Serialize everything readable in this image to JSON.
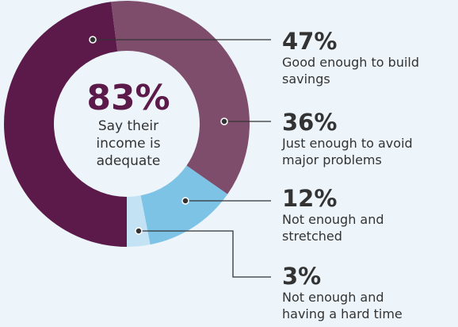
{
  "chart_data": {
    "type": "pie",
    "donut": true,
    "center_value": "83%",
    "center_text": [
      "Say their",
      "income is",
      "adequate"
    ],
    "slices": [
      {
        "value": 47,
        "label_value": "47%",
        "label": [
          "Good enough to build",
          "savings"
        ],
        "color": "#5c1a4a"
      },
      {
        "value": 36,
        "label_value": "36%",
        "label": [
          "Just enough to avoid",
          "major problems"
        ],
        "color": "#7e4d6c"
      },
      {
        "value": 12,
        "label_value": "12%",
        "label": [
          "Not enough and",
          "stretched"
        ],
        "color": "#7cc3e6"
      },
      {
        "value": 3,
        "label_value": "3%",
        "label": [
          "Not enough and",
          "having a hard time"
        ],
        "color": "#c3e3f4"
      }
    ]
  }
}
